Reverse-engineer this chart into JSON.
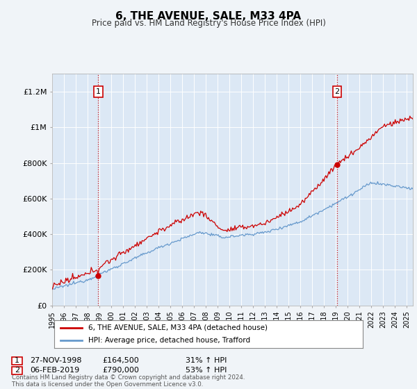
{
  "title": "6, THE AVENUE, SALE, M33 4PA",
  "subtitle": "Price paid vs. HM Land Registry's House Price Index (HPI)",
  "xlim_start": 1995.0,
  "xlim_end": 2025.5,
  "ylim": [
    0,
    1300000
  ],
  "background_color": "#f0f4f8",
  "plot_bg_color": "#dce8f5",
  "legend_entry1": "6, THE AVENUE, SALE, M33 4PA (detached house)",
  "legend_entry2": "HPI: Average price, detached house, Trafford",
  "sale1_price": 164500,
  "sale1_x": 1998.9,
  "sale2_price": 790000,
  "sale2_x": 2019.1,
  "footnote": "Contains HM Land Registry data © Crown copyright and database right 2024.\nThis data is licensed under the Open Government Licence v3.0.",
  "hpi_line_color": "#6699cc",
  "price_line_color": "#cc0000",
  "dashed_color": "#cc0000",
  "ytick_labels": [
    "£0",
    "£200K",
    "£400K",
    "£600K",
    "£800K",
    "£1M",
    "£1.2M"
  ],
  "ytick_values": [
    0,
    200000,
    400000,
    600000,
    800000,
    1000000,
    1200000
  ]
}
